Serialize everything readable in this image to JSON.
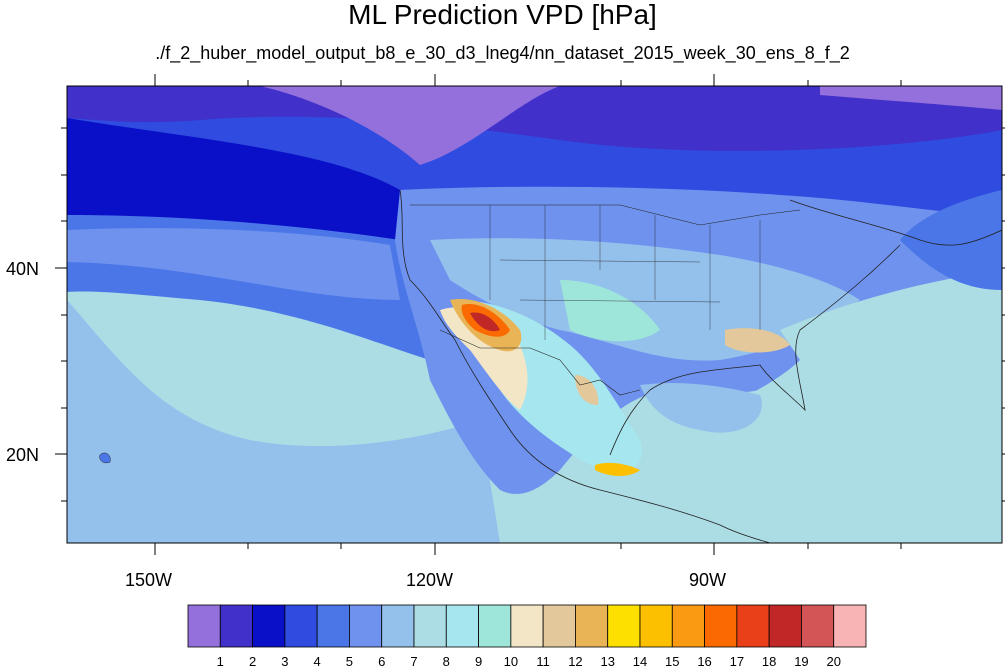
{
  "title": "ML Prediction VPD [hPa]",
  "subtitle": "./f_2_huber_model_output_b8_e_30_d3_lneg4/nn_dataset_2015_week_30_ens_8_f_2",
  "map": {
    "lat_labels": [
      "40N",
      "20N"
    ],
    "lon_labels": [
      "150W",
      "120W",
      "90W"
    ]
  },
  "colorbar": {
    "colors": [
      "#9370db",
      "#4130c9",
      "#0a0fc8",
      "#2f4be0",
      "#4a76e8",
      "#6e92ee",
      "#94c0ec",
      "#acdce4",
      "#a6e6ee",
      "#9ee6da",
      "#f2e6c6",
      "#e2c89a",
      "#e8b455",
      "#fde000",
      "#fcc000",
      "#fa9a12",
      "#fa6a00",
      "#e9401a",
      "#c02828",
      "#d35555",
      "#f8b4b4"
    ],
    "labels": [
      "1",
      "2",
      "3",
      "4",
      "5",
      "6",
      "7",
      "8",
      "9",
      "10",
      "11",
      "12",
      "13",
      "14",
      "15",
      "16",
      "17",
      "18",
      "19",
      "20"
    ]
  }
}
